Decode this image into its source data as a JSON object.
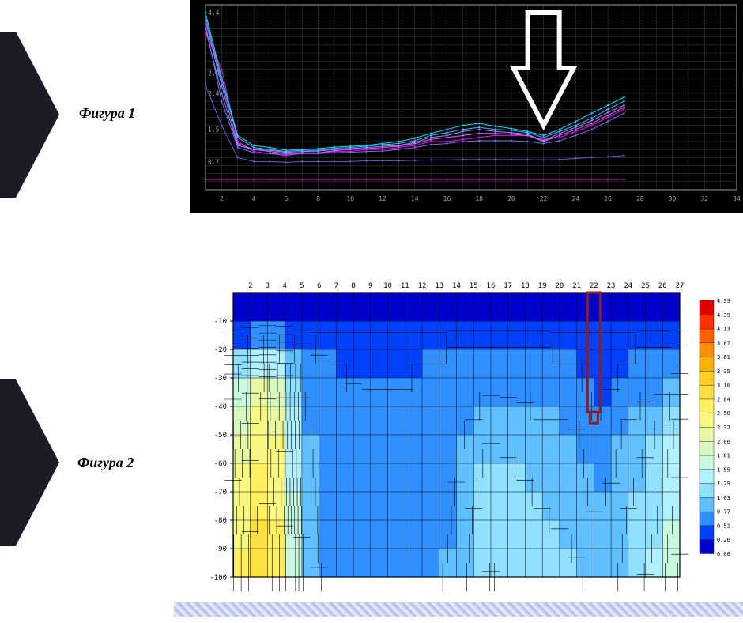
{
  "labels": {
    "fig1": "Фигура 1",
    "fig2": "Фигура 2"
  },
  "chevron": {
    "fill": "#1c1d24"
  },
  "chart1": {
    "type": "line",
    "background": "#000000",
    "grid_color": "#404040",
    "axis_color": "#a0a0a0",
    "tick_fontsize": 8,
    "tick_color": "#a0a0a0",
    "x_ticks": [
      2,
      4,
      6,
      8,
      10,
      12,
      14,
      16,
      18,
      20,
      22,
      24,
      26,
      28,
      30,
      32,
      34
    ],
    "y_ticks": [
      0.7,
      1.5,
      2.4,
      2.9,
      4.4
    ],
    "x": [
      1,
      2,
      3,
      4,
      5,
      6,
      7,
      8,
      9,
      10,
      11,
      12,
      13,
      14,
      15,
      16,
      17,
      18,
      19,
      20,
      21,
      22,
      23,
      24,
      25,
      26,
      27
    ],
    "series": [
      {
        "color": "#ff00ff",
        "width": 1,
        "values": [
          3.9,
          3.0,
          1.2,
          0.95,
          0.9,
          0.85,
          0.9,
          0.9,
          0.95,
          0.95,
          1.0,
          1.0,
          1.05,
          1.1,
          1.2,
          1.2,
          1.25,
          1.3,
          1.35,
          1.35,
          1.35,
          1.25,
          1.3,
          1.45,
          1.6,
          1.8,
          2.0
        ]
      },
      {
        "color": "#d070ff",
        "width": 1,
        "values": [
          4.2,
          2.6,
          1.15,
          1.0,
          0.95,
          0.9,
          0.92,
          0.92,
          0.97,
          1.0,
          1.02,
          1.05,
          1.08,
          1.15,
          1.25,
          1.3,
          1.35,
          1.4,
          1.4,
          1.38,
          1.35,
          1.2,
          1.35,
          1.5,
          1.65,
          1.85,
          2.05
        ]
      },
      {
        "color": "#9090ff",
        "width": 1,
        "values": [
          4.0,
          2.4,
          1.1,
          1.0,
          0.98,
          0.93,
          0.95,
          0.96,
          1.0,
          1.02,
          1.05,
          1.08,
          1.1,
          1.18,
          1.3,
          1.35,
          1.45,
          1.5,
          1.45,
          1.42,
          1.38,
          1.22,
          1.4,
          1.55,
          1.72,
          1.92,
          2.1
        ]
      },
      {
        "color": "#50b0ff",
        "width": 1,
        "values": [
          4.3,
          2.7,
          1.3,
          1.05,
          1.0,
          0.95,
          0.98,
          0.98,
          1.03,
          1.05,
          1.08,
          1.12,
          1.15,
          1.22,
          1.35,
          1.42,
          1.5,
          1.55,
          1.5,
          1.48,
          1.42,
          1.3,
          1.45,
          1.6,
          1.78,
          2.0,
          2.2
        ]
      },
      {
        "color": "#00e0ff",
        "width": 1,
        "values": [
          4.4,
          2.8,
          1.35,
          1.1,
          1.05,
          0.98,
          1.0,
          1.02,
          1.06,
          1.08,
          1.1,
          1.15,
          1.2,
          1.28,
          1.4,
          1.5,
          1.6,
          1.65,
          1.58,
          1.52,
          1.45,
          1.35,
          1.5,
          1.7,
          1.9,
          2.1,
          2.3
        ]
      },
      {
        "color": "#7070ff",
        "width": 1,
        "values": [
          4.1,
          2.2,
          1.05,
          0.92,
          0.9,
          0.88,
          0.9,
          0.9,
          0.92,
          0.93,
          0.95,
          0.96,
          1.0,
          1.05,
          1.12,
          1.15,
          1.2,
          1.22,
          1.22,
          1.22,
          1.2,
          1.15,
          1.22,
          1.35,
          1.5,
          1.7,
          1.9
        ]
      },
      {
        "color": "#6060d0",
        "width": 1,
        "values": [
          2.6,
          1.6,
          0.8,
          0.7,
          0.7,
          0.68,
          0.7,
          0.7,
          0.7,
          0.7,
          0.72,
          0.72,
          0.72,
          0.73,
          0.74,
          0.74,
          0.75,
          0.75,
          0.75,
          0.75,
          0.75,
          0.74,
          0.75,
          0.78,
          0.8,
          0.82,
          0.85
        ]
      },
      {
        "color": "#c000c0",
        "width": 1,
        "values": [
          0.25,
          0.25,
          0.25,
          0.25,
          0.25,
          0.25,
          0.25,
          0.25,
          0.25,
          0.25,
          0.25,
          0.25,
          0.25,
          0.25,
          0.25,
          0.25,
          0.25,
          0.25,
          0.25,
          0.25,
          0.25,
          0.25,
          0.25,
          0.25,
          0.25,
          0.25,
          0.25
        ]
      }
    ],
    "arrow": {
      "x": 22,
      "stroke": "#ffffff",
      "width": 6
    }
  },
  "chart2": {
    "type": "heatmap",
    "background": "#ffffff",
    "grid_color": "#000000",
    "tick_fontsize": 9,
    "tick_color": "#000000",
    "x_ticks": [
      2,
      3,
      4,
      5,
      6,
      7,
      8,
      9,
      10,
      11,
      12,
      13,
      14,
      15,
      16,
      17,
      18,
      19,
      20,
      21,
      22,
      23,
      24,
      25,
      26,
      27
    ],
    "y_ticks": [
      -10,
      -20,
      -30,
      -40,
      -50,
      -60,
      -70,
      -80,
      -90,
      -100
    ],
    "ylim": [
      0,
      -100
    ],
    "xlim": [
      1,
      27
    ],
    "levels": [
      0.0,
      0.26,
      0.52,
      0.77,
      1.03,
      1.29,
      1.55,
      1.81,
      2.06,
      2.32,
      2.58,
      2.84,
      3.1,
      3.35,
      3.61,
      3.87,
      4.13,
      4.39
    ],
    "palette": [
      "#0000cc",
      "#0040ff",
      "#3090ff",
      "#60c0ff",
      "#90e0ff",
      "#b0f0ff",
      "#c8f8e0",
      "#d8f8c0",
      "#e8f8a0",
      "#f8f880",
      "#ffee60",
      "#ffe040",
      "#ffd020",
      "#ffb000",
      "#ff9000",
      "#ff6000",
      "#ff3000",
      "#e00000"
    ],
    "grid_values": [
      [
        0.05,
        0.05,
        0.05,
        0.05,
        0.05,
        0.05,
        0.05,
        0.05,
        0.05,
        0.05,
        0.05,
        0.05,
        0.05,
        0.05,
        0.05,
        0.05,
        0.05,
        0.05,
        0.05,
        0.05,
        0.05,
        0.05,
        0.05,
        0.05,
        0.05,
        0.05,
        0.05
      ],
      [
        0.1,
        0.1,
        0.1,
        0.1,
        0.1,
        0.1,
        0.1,
        0.1,
        0.1,
        0.1,
        0.1,
        0.1,
        0.1,
        0.1,
        0.1,
        0.1,
        0.1,
        0.1,
        0.1,
        0.1,
        0.1,
        0.1,
        0.1,
        0.1,
        0.1,
        0.1,
        0.1
      ],
      [
        0.6,
        0.8,
        1.1,
        1.0,
        0.6,
        0.5,
        0.5,
        0.5,
        0.5,
        0.5,
        0.5,
        0.5,
        0.5,
        0.55,
        0.55,
        0.55,
        0.55,
        0.55,
        0.55,
        0.5,
        0.5,
        0.5,
        0.5,
        0.5,
        0.55,
        0.55,
        0.6
      ],
      [
        1.4,
        1.9,
        2.1,
        1.6,
        0.7,
        0.6,
        0.55,
        0.5,
        0.5,
        0.5,
        0.5,
        0.55,
        0.55,
        0.6,
        0.6,
        0.55,
        0.6,
        0.55,
        0.55,
        0.55,
        0.55,
        0.45,
        0.5,
        0.55,
        0.6,
        0.6,
        0.8
      ],
      [
        1.6,
        2.2,
        2.4,
        1.9,
        0.8,
        0.65,
        0.6,
        0.6,
        0.55,
        0.55,
        0.55,
        0.6,
        0.6,
        0.65,
        0.7,
        0.9,
        0.85,
        0.8,
        0.7,
        0.7,
        0.65,
        0.5,
        0.55,
        0.7,
        0.8,
        0.9,
        1.2
      ],
      [
        1.8,
        2.4,
        2.6,
        2.0,
        0.85,
        0.7,
        0.6,
        0.6,
        0.6,
        0.6,
        0.6,
        0.6,
        0.62,
        0.7,
        0.85,
        1.0,
        0.95,
        0.95,
        0.85,
        0.85,
        0.8,
        0.6,
        0.65,
        0.85,
        0.95,
        1.1,
        1.4
      ],
      [
        2.0,
        2.6,
        2.7,
        2.1,
        0.9,
        0.7,
        0.62,
        0.6,
        0.6,
        0.6,
        0.6,
        0.62,
        0.65,
        0.75,
        0.95,
        1.1,
        1.05,
        1.0,
        0.95,
        0.9,
        0.85,
        0.65,
        0.7,
        0.95,
        1.05,
        1.2,
        1.5
      ],
      [
        2.1,
        2.7,
        2.8,
        2.2,
        0.95,
        0.72,
        0.65,
        0.62,
        0.62,
        0.62,
        0.62,
        0.63,
        0.68,
        0.78,
        1.0,
        1.15,
        1.1,
        1.05,
        1.0,
        0.95,
        0.9,
        0.7,
        0.8,
        1.0,
        1.1,
        1.3,
        1.6
      ],
      [
        2.2,
        2.8,
        2.9,
        2.3,
        1.0,
        0.75,
        0.65,
        0.62,
        0.62,
        0.62,
        0.63,
        0.65,
        0.7,
        0.8,
        1.05,
        1.2,
        1.15,
        1.1,
        1.05,
        1.0,
        0.95,
        0.8,
        0.85,
        1.05,
        1.15,
        1.35,
        1.7
      ],
      [
        2.3,
        2.9,
        3.0,
        2.4,
        1.05,
        0.75,
        0.68,
        0.65,
        0.63,
        0.63,
        0.65,
        0.66,
        0.72,
        0.82,
        1.1,
        1.25,
        1.2,
        1.15,
        1.1,
        1.1,
        1.0,
        0.85,
        0.9,
        1.1,
        1.2,
        1.45,
        1.8
      ],
      [
        2.3,
        2.9,
        3.0,
        2.4,
        1.05,
        0.78,
        0.7,
        0.65,
        0.65,
        0.65,
        0.65,
        0.68,
        0.75,
        0.85,
        1.15,
        1.3,
        1.25,
        1.2,
        1.15,
        1.15,
        1.1,
        0.9,
        0.95,
        1.15,
        1.3,
        1.5,
        1.85
      ]
    ],
    "marker": {
      "x": 22,
      "y_from": 0,
      "y_to": -42,
      "stroke": "#8a1e1e",
      "width": 3
    }
  },
  "legend": {
    "title_fontsize": 8,
    "label_color": "#000000"
  }
}
